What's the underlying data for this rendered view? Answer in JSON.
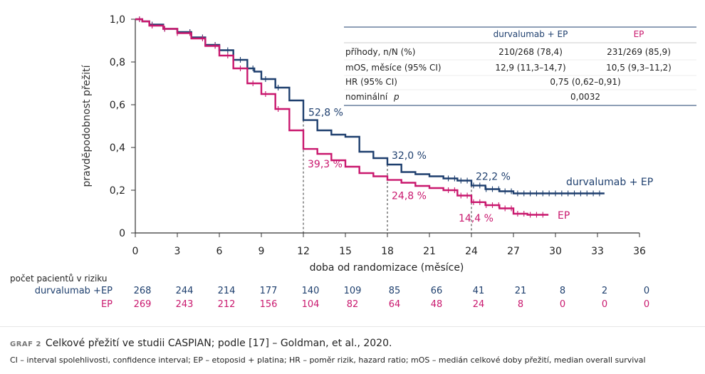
{
  "chart_data": {
    "type": "line",
    "xlabel": "doba od randomizace (měsíce)",
    "ylabel": "pravděpodobnost přežití",
    "xlim": [
      0,
      36
    ],
    "ylim": [
      0,
      1.0
    ],
    "x_ticks": [
      0,
      3,
      6,
      9,
      12,
      15,
      18,
      21,
      24,
      27,
      30,
      33,
      36
    ],
    "y_ticks": [
      {
        "v": 0,
        "label": "0"
      },
      {
        "v": 0.2,
        "label": "0,2"
      },
      {
        "v": 0.4,
        "label": "0,4"
      },
      {
        "v": 0.6,
        "label": "0,6"
      },
      {
        "v": 0.8,
        "label": "0,8"
      },
      {
        "v": 1.0,
        "label": "1,0"
      }
    ],
    "series": [
      {
        "name": "durvalumab + EP",
        "color": "#1e3f6e",
        "points": [
          [
            0,
            1.0
          ],
          [
            0.5,
            0.99
          ],
          [
            1,
            0.975
          ],
          [
            2,
            0.955
          ],
          [
            3,
            0.94
          ],
          [
            4,
            0.915
          ],
          [
            5,
            0.88
          ],
          [
            6,
            0.855
          ],
          [
            7,
            0.81
          ],
          [
            8,
            0.77
          ],
          [
            8.5,
            0.755
          ],
          [
            9,
            0.72
          ],
          [
            10,
            0.68
          ],
          [
            11,
            0.62
          ],
          [
            12,
            0.528
          ],
          [
            13,
            0.48
          ],
          [
            14,
            0.46
          ],
          [
            15,
            0.45
          ],
          [
            16,
            0.38
          ],
          [
            17,
            0.35
          ],
          [
            18,
            0.32
          ],
          [
            19,
            0.285
          ],
          [
            20,
            0.275
          ],
          [
            21,
            0.265
          ],
          [
            22,
            0.255
          ],
          [
            23,
            0.245
          ],
          [
            24,
            0.222
          ],
          [
            25,
            0.205
          ],
          [
            26,
            0.195
          ],
          [
            27,
            0.185
          ],
          [
            28,
            0.185
          ],
          [
            29,
            0.185
          ],
          [
            30,
            0.185
          ],
          [
            31,
            0.185
          ],
          [
            32,
            0.185
          ],
          [
            33,
            0.185
          ],
          [
            33.5,
            0.185
          ]
        ]
      },
      {
        "name": "EP",
        "color": "#c9186e",
        "points": [
          [
            0,
            1.0
          ],
          [
            0.5,
            0.99
          ],
          [
            1,
            0.97
          ],
          [
            2,
            0.955
          ],
          [
            3,
            0.935
          ],
          [
            4,
            0.91
          ],
          [
            5,
            0.875
          ],
          [
            6,
            0.83
          ],
          [
            7,
            0.77
          ],
          [
            8,
            0.7
          ],
          [
            9,
            0.65
          ],
          [
            10,
            0.58
          ],
          [
            11,
            0.48
          ],
          [
            12,
            0.393
          ],
          [
            13,
            0.37
          ],
          [
            14,
            0.34
          ],
          [
            15,
            0.31
          ],
          [
            16,
            0.28
          ],
          [
            17,
            0.265
          ],
          [
            18,
            0.248
          ],
          [
            19,
            0.235
          ],
          [
            20,
            0.22
          ],
          [
            21,
            0.21
          ],
          [
            22,
            0.2
          ],
          [
            23,
            0.175
          ],
          [
            24,
            0.144
          ],
          [
            25,
            0.13
          ],
          [
            26,
            0.115
          ],
          [
            27,
            0.09
          ],
          [
            28,
            0.085
          ],
          [
            29,
            0.085
          ],
          [
            29.5,
            0.085
          ]
        ]
      }
    ],
    "annotations": [
      {
        "x": 12,
        "y": 0.528,
        "text": "52,8 %",
        "series": 0
      },
      {
        "x": 12,
        "y": 0.393,
        "text": "39,3 %",
        "series": 1
      },
      {
        "x": 18,
        "y": 0.32,
        "text": "32,0 %",
        "series": 0
      },
      {
        "x": 18,
        "y": 0.248,
        "text": "24,8 %",
        "series": 1
      },
      {
        "x": 24,
        "y": 0.222,
        "text": "22,2 %",
        "series": 0
      },
      {
        "x": 24,
        "y": 0.144,
        "text": "14,4 %",
        "series": 1
      }
    ],
    "vlines": [
      12,
      18,
      24
    ],
    "end_labels": [
      {
        "text": "durvalumab + EP",
        "series": 0
      },
      {
        "text": "EP",
        "series": 1
      }
    ],
    "stats_table": {
      "headers": [
        "",
        "durvalumab + EP",
        "EP"
      ],
      "rows": [
        [
          "příhody, n/N (%)",
          "210/268 (78,4)",
          "231/269 (85,9)"
        ],
        [
          "mOS, měsíce (95% CI)",
          "12,9 (11,3–14,7)",
          "10,5 (9,3–11,2)"
        ],
        [
          "HR (95% CI)",
          "0,75 (0,62–0,91)"
        ],
        [
          "nominální p",
          "0,0032"
        ]
      ]
    },
    "risk_table": {
      "title": "počet pacientů v riziku",
      "rows": [
        {
          "label": "durvalumab +EP",
          "values": [
            "268",
            "244",
            "214",
            "177",
            "140",
            "109",
            "85",
            "66",
            "41",
            "21",
            "8",
            "2",
            "0"
          ]
        },
        {
          "label": "EP",
          "values": [
            "269",
            "243",
            "212",
            "156",
            "104",
            "82",
            "64",
            "48",
            "24",
            "8",
            "0",
            "0",
            "0"
          ]
        }
      ]
    }
  },
  "caption": {
    "label": "GRAF 2",
    "text": "Celkové přežití ve studii CASPIAN; podle [17] – Goldman, et al., 2020."
  },
  "footnote": "CI – interval spolehlivosti, confidence interval; EP – etoposid + platina; HR – poměr rizik, hazard ratio; mOS – medián celkové doby přežití, median overall survival"
}
